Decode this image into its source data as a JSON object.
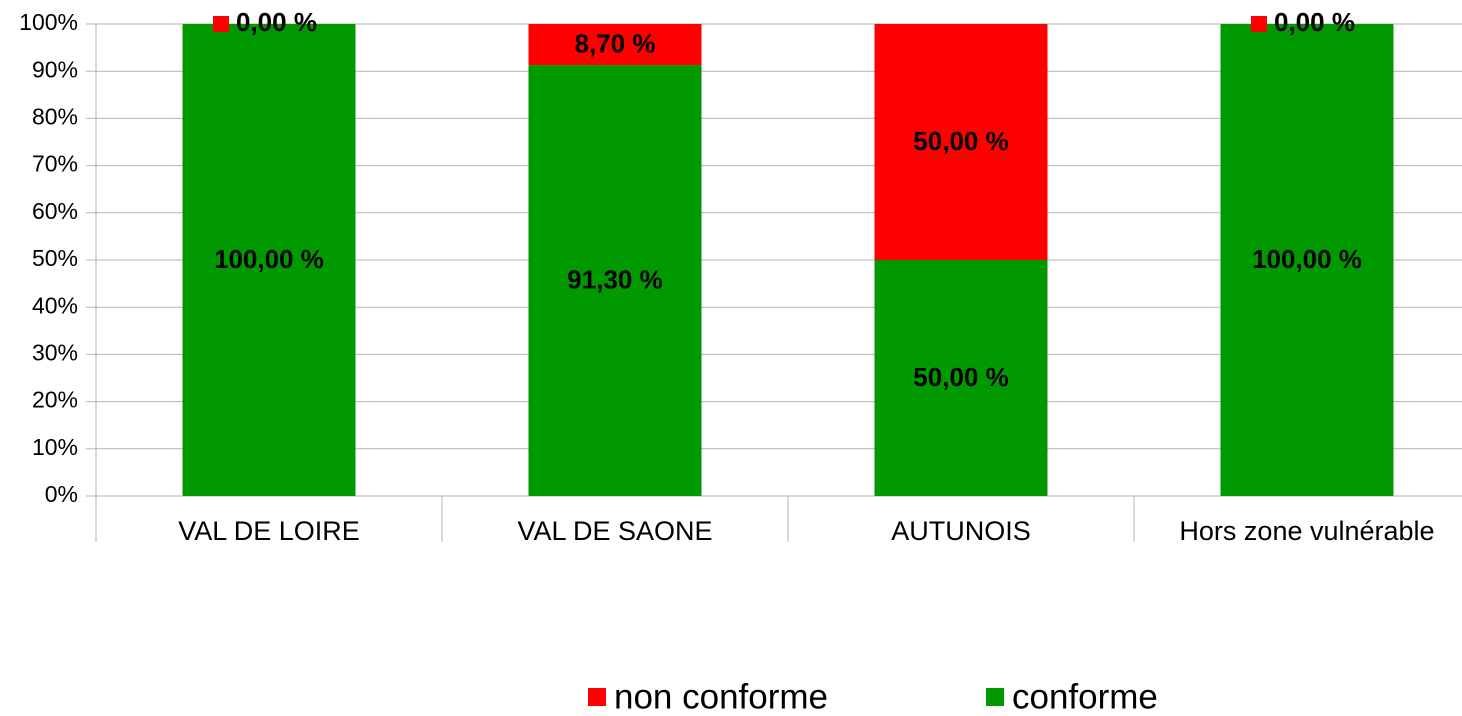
{
  "chart_data": {
    "type": "stacked_bar",
    "categories": [
      "VAL DE LOIRE",
      "VAL DE SAONE",
      "AUTUNOIS",
      "Hors zone vulnérable"
    ],
    "series": [
      {
        "name": "conforme",
        "color": "#009900",
        "values": [
          100,
          91.3,
          50,
          100
        ],
        "value_labels": [
          "100,00 %",
          "91,30 %",
          "50,00 %",
          "100,00 %"
        ]
      },
      {
        "name": "non conforme",
        "color": "#ff0000",
        "values": [
          0,
          8.7,
          50,
          0
        ],
        "value_labels": [
          "0,00 %",
          "8,70 %",
          "50,00 %",
          "0,00 %"
        ]
      }
    ],
    "ylim": [
      0,
      100
    ],
    "yticks": [
      {
        "value": 0,
        "label": "0%"
      },
      {
        "value": 10,
        "label": "10%"
      },
      {
        "value": 20,
        "label": "20%"
      },
      {
        "value": 30,
        "label": "30%"
      },
      {
        "value": 40,
        "label": "40%"
      },
      {
        "value": 50,
        "label": "50%"
      },
      {
        "value": 60,
        "label": "60%"
      },
      {
        "value": 70,
        "label": "70%"
      },
      {
        "value": 80,
        "label": "80%"
      },
      {
        "value": 90,
        "label": "90%"
      },
      {
        "value": 100,
        "label": "100%"
      }
    ],
    "grid": true,
    "legend": "bottom"
  }
}
